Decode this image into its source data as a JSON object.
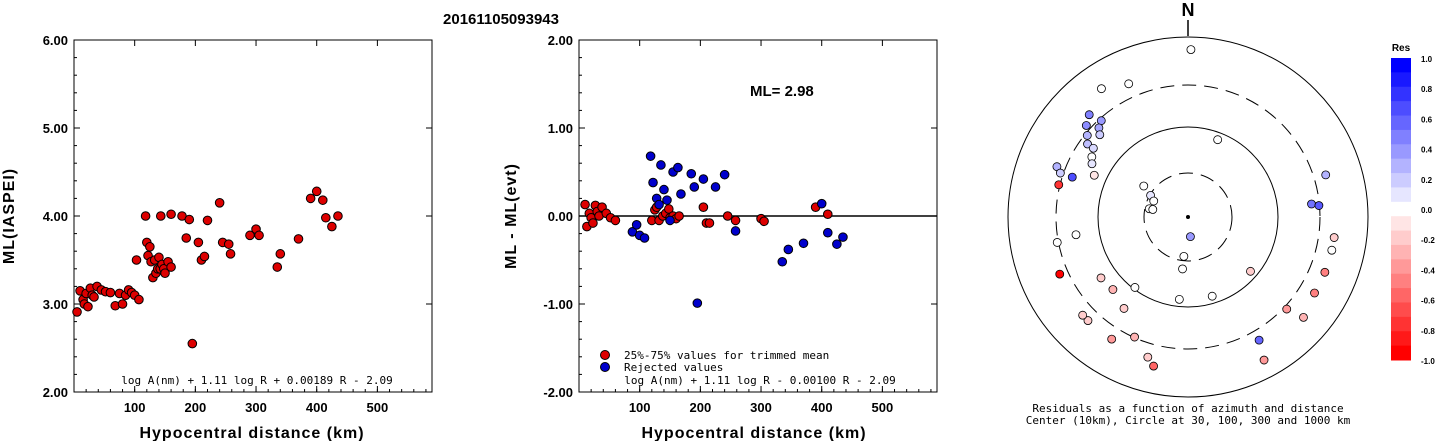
{
  "event_id": "20161105093943",
  "chart_data": [
    {
      "type": "scatter",
      "xlabel": "Hypocentral distance (km)",
      "ylabel": "ML(IASPEI)",
      "xlim": [
        0,
        590
      ],
      "ylim": [
        2.0,
        6.0
      ],
      "xticks": [
        "100",
        "200",
        "300",
        "400",
        "500"
      ],
      "yticks": [
        "2.00",
        "3.00",
        "4.00",
        "5.00",
        "6.00"
      ],
      "formula": "log A(nm) + 1.11 log R + 0.00189 R - 2.09",
      "point_color": "#dd0000",
      "points": [
        [
          5,
          2.91
        ],
        [
          10,
          3.15
        ],
        [
          15,
          3.05
        ],
        [
          17,
          3.0
        ],
        [
          20,
          3.12
        ],
        [
          23,
          2.97
        ],
        [
          27,
          3.18
        ],
        [
          30,
          3.1
        ],
        [
          33,
          3.08
        ],
        [
          38,
          3.2
        ],
        [
          45,
          3.16
        ],
        [
          52,
          3.14
        ],
        [
          60,
          3.13
        ],
        [
          68,
          2.98
        ],
        [
          75,
          3.12
        ],
        [
          80,
          3.0
        ],
        [
          85,
          3.1
        ],
        [
          90,
          3.16
        ],
        [
          95,
          3.13
        ],
        [
          100,
          3.1
        ],
        [
          103,
          3.5
        ],
        [
          107,
          3.05
        ],
        [
          118,
          4.0
        ],
        [
          120,
          3.7
        ],
        [
          122,
          3.55
        ],
        [
          125,
          3.65
        ],
        [
          127,
          3.48
        ],
        [
          130,
          3.3
        ],
        [
          133,
          3.5
        ],
        [
          135,
          3.35
        ],
        [
          138,
          3.4
        ],
        [
          140,
          3.53
        ],
        [
          142,
          3.4
        ],
        [
          145,
          3.45
        ],
        [
          148,
          3.4
        ],
        [
          150,
          3.35
        ],
        [
          155,
          3.48
        ],
        [
          160,
          3.42
        ],
        [
          143,
          4.0
        ],
        [
          160,
          4.02
        ],
        [
          178,
          4.0
        ],
        [
          185,
          3.75
        ],
        [
          190,
          3.96
        ],
        [
          195,
          2.55
        ],
        [
          205,
          3.7
        ],
        [
          210,
          3.5
        ],
        [
          215,
          3.54
        ],
        [
          220,
          3.95
        ],
        [
          240,
          4.15
        ],
        [
          245,
          3.7
        ],
        [
          255,
          3.68
        ],
        [
          258,
          3.57
        ],
        [
          290,
          3.78
        ],
        [
          300,
          3.85
        ],
        [
          305,
          3.78
        ],
        [
          335,
          3.42
        ],
        [
          340,
          3.57
        ],
        [
          370,
          3.74
        ],
        [
          390,
          4.2
        ],
        [
          400,
          4.28
        ],
        [
          410,
          4.18
        ],
        [
          415,
          3.98
        ],
        [
          425,
          3.88
        ],
        [
          435,
          4.0
        ]
      ]
    },
    {
      "type": "scatter",
      "xlabel": "Hypocentral distance (km)",
      "ylabel": "ML - ML(evt)",
      "xlim": [
        0,
        590
      ],
      "ylim": [
        -2.0,
        2.0
      ],
      "xticks": [
        "100",
        "200",
        "300",
        "400",
        "500"
      ],
      "yticks": [
        "-2.00",
        "-1.00",
        "0.00",
        "1.00",
        "2.00"
      ],
      "annotation": "ML= 2.98",
      "formula": "log A(nm) + 1.11 log R - 0.00100 R - 2.09",
      "legend": [
        {
          "label": "25%-75% values for trimmed mean",
          "color": "#dd0000"
        },
        {
          "label": "Rejected values",
          "color": "#0000cc"
        }
      ],
      "series": [
        {
          "name": "25%-75% values for trimmed mean",
          "color": "#dd0000",
          "points": [
            [
              10,
              0.13
            ],
            [
              13,
              -0.12
            ],
            [
              17,
              0.03
            ],
            [
              20,
              -0.02
            ],
            [
              23,
              -0.08
            ],
            [
              27,
              0.12
            ],
            [
              30,
              0.05
            ],
            [
              33,
              0.0
            ],
            [
              38,
              0.1
            ],
            [
              45,
              0.03
            ],
            [
              52,
              -0.02
            ],
            [
              60,
              -0.05
            ],
            [
              120,
              -0.05
            ],
            [
              125,
              0.07
            ],
            [
              128,
              0.1
            ],
            [
              132,
              -0.05
            ],
            [
              138,
              0.0
            ],
            [
              143,
              0.03
            ],
            [
              148,
              0.08
            ],
            [
              150,
              -0.02
            ],
            [
              155,
              0.0
            ],
            [
              160,
              -0.03
            ],
            [
              165,
              0.0
            ],
            [
              205,
              0.1
            ],
            [
              210,
              -0.08
            ],
            [
              215,
              -0.08
            ],
            [
              245,
              0.0
            ],
            [
              258,
              -0.05
            ],
            [
              300,
              -0.03
            ],
            [
              305,
              -0.06
            ],
            [
              390,
              0.1
            ],
            [
              410,
              0.02
            ]
          ]
        },
        {
          "name": "Rejected values",
          "color": "#0000cc",
          "points": [
            [
              88,
              -0.18
            ],
            [
              95,
              -0.1
            ],
            [
              100,
              -0.22
            ],
            [
              108,
              -0.25
            ],
            [
              118,
              0.68
            ],
            [
              122,
              0.38
            ],
            [
              128,
              0.2
            ],
            [
              132,
              0.13
            ],
            [
              135,
              0.58
            ],
            [
              140,
              0.3
            ],
            [
              145,
              0.18
            ],
            [
              150,
              -0.05
            ],
            [
              155,
              0.5
            ],
            [
              163,
              0.55
            ],
            [
              168,
              0.25
            ],
            [
              185,
              0.48
            ],
            [
              190,
              0.33
            ],
            [
              195,
              -0.99
            ],
            [
              205,
              0.42
            ],
            [
              225,
              0.33
            ],
            [
              240,
              0.47
            ],
            [
              258,
              -0.17
            ],
            [
              335,
              -0.52
            ],
            [
              345,
              -0.38
            ],
            [
              370,
              -0.31
            ],
            [
              400,
              0.14
            ],
            [
              410,
              -0.19
            ],
            [
              425,
              -0.32
            ],
            [
              435,
              -0.24
            ]
          ]
        }
      ]
    },
    {
      "type": "scatter",
      "north_label": "N",
      "caption_line1": "Residuals as a function of azimuth and distance",
      "caption_line2": "Center (10km), Circle at 30, 100, 300 and 1000 km",
      "colorbar_title": "Res",
      "colorbar_ticks": [
        "1.0",
        "0.8",
        "0.6",
        "0.4",
        "0.2",
        "0.0",
        "-0.2",
        "-0.4",
        "-0.6",
        "-0.8",
        "-1.0"
      ],
      "stations_polar": [
        {
          "az": 1,
          "r": 0.93,
          "res": 0.0
        },
        {
          "az": 336,
          "r": 0.81,
          "res": 0.0
        },
        {
          "az": 326,
          "r": 0.86,
          "res": 0.0
        },
        {
          "az": 316,
          "r": 0.79,
          "res": 0.5
        },
        {
          "az": 312,
          "r": 0.76,
          "res": 0.45
        },
        {
          "az": 318,
          "r": 0.72,
          "res": 0.4
        },
        {
          "az": 315,
          "r": 0.7,
          "res": 0.35
        },
        {
          "az": 309,
          "r": 0.72,
          "res": 0.3
        },
        {
          "az": 306,
          "r": 0.69,
          "res": 0.25
        },
        {
          "az": 313,
          "r": 0.67,
          "res": 0.2
        },
        {
          "az": 306,
          "r": 0.65,
          "res": 0.15
        },
        {
          "az": 302,
          "r": 0.63,
          "res": 0.0
        },
        {
          "az": 299,
          "r": 0.61,
          "res": 0.1
        },
        {
          "az": 291,
          "r": 0.78,
          "res": 0.3
        },
        {
          "az": 289,
          "r": 0.75,
          "res": 0.2
        },
        {
          "az": 289,
          "r": 0.68,
          "res": 0.7
        },
        {
          "az": 284,
          "r": 0.74,
          "res": -0.8
        },
        {
          "az": 294,
          "r": 0.57,
          "res": -0.1
        },
        {
          "az": 21,
          "r": 0.46,
          "res": 0.0
        },
        {
          "az": 305,
          "r": 0.3,
          "res": 0.0
        },
        {
          "az": 300,
          "r": 0.24,
          "res": 0.1
        },
        {
          "az": 295,
          "r": 0.21,
          "res": 0.0
        },
        {
          "az": 282,
          "r": 0.22,
          "res": 0.0
        },
        {
          "az": 282,
          "r": 0.2,
          "res": 0.0
        },
        {
          "az": 173,
          "r": 0.11,
          "res": 0.4
        },
        {
          "az": 259,
          "r": 0.74,
          "res": 0.0
        },
        {
          "az": 261,
          "r": 0.63,
          "res": 0.0
        },
        {
          "az": 246,
          "r": 0.78,
          "res": -1.0
        },
        {
          "az": 235,
          "r": 0.59,
          "res": -0.2
        },
        {
          "az": 215,
          "r": 0.62,
          "res": -0.2
        },
        {
          "az": 226,
          "r": 0.58,
          "res": -0.3
        },
        {
          "az": 217,
          "r": 0.49,
          "res": 0.0
        },
        {
          "az": 224,
          "r": 0.8,
          "res": -0.2
        },
        {
          "az": 227,
          "r": 0.8,
          "res": -0.2
        },
        {
          "az": 204,
          "r": 0.73,
          "res": -0.3
        },
        {
          "az": 196,
          "r": 0.81,
          "res": -0.2
        },
        {
          "az": 193,
          "r": 0.85,
          "res": -0.6
        },
        {
          "az": 212,
          "r": 0.8,
          "res": -0.4
        },
        {
          "az": 186,
          "r": 0.46,
          "res": 0.0
        },
        {
          "az": 163,
          "r": 0.46,
          "res": 0.0
        },
        {
          "az": 131,
          "r": 0.46,
          "res": -0.2
        },
        {
          "az": 150,
          "r": 0.79,
          "res": 0.6
        },
        {
          "az": 152,
          "r": 0.9,
          "res": -0.4
        },
        {
          "az": 133,
          "r": 0.75,
          "res": -0.4
        },
        {
          "az": 131,
          "r": 0.85,
          "res": -0.3
        },
        {
          "az": 121,
          "r": 0.82,
          "res": -0.5
        },
        {
          "az": 103,
          "r": 0.82,
          "res": 0.0
        },
        {
          "az": 98,
          "r": 0.82,
          "res": -0.2
        },
        {
          "az": 112,
          "r": 0.82,
          "res": -0.5
        },
        {
          "az": 84,
          "r": 0.69,
          "res": 0.55
        },
        {
          "az": 85,
          "r": 0.73,
          "res": 0.65
        },
        {
          "az": 73,
          "r": 0.8,
          "res": 0.3
        },
        {
          "az": 186,
          "r": 0.29,
          "res": 0.0
        },
        {
          "az": 186,
          "r": 0.22,
          "res": 0.0
        }
      ]
    }
  ]
}
